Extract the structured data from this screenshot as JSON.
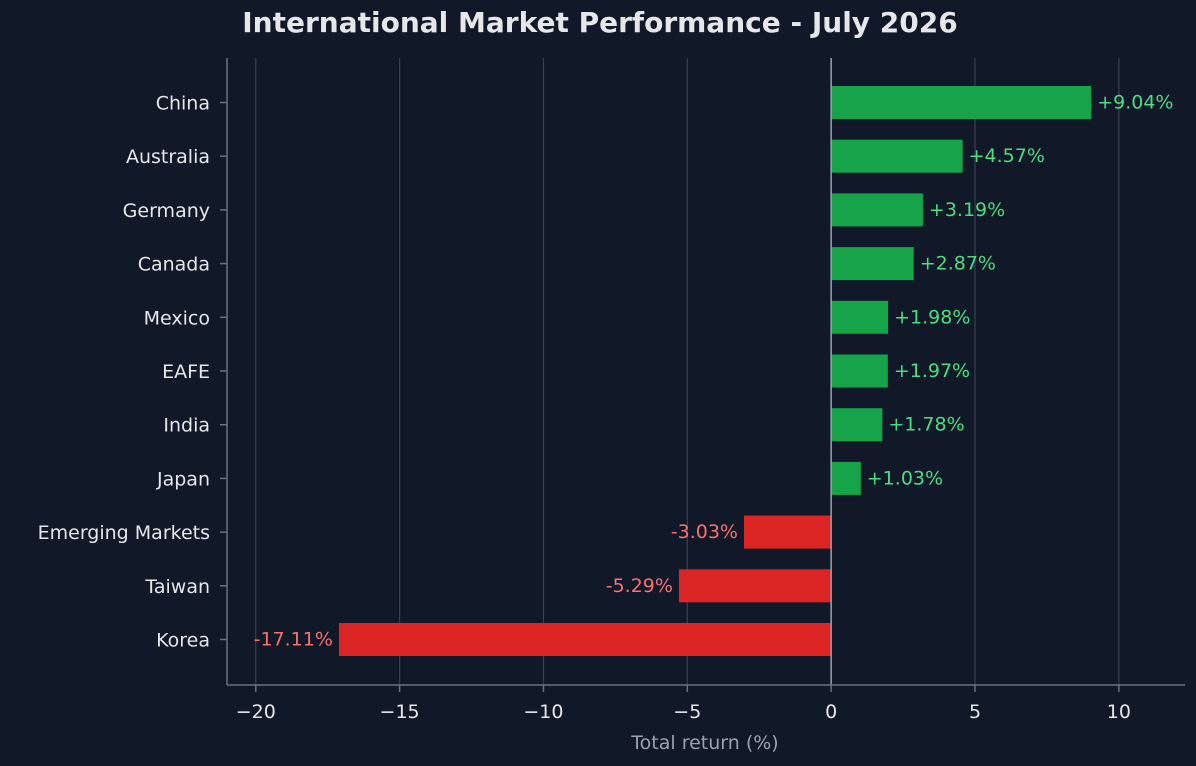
{
  "chart_data": {
    "type": "bar",
    "orientation": "horizontal",
    "title": "International Market Performance - July 2026",
    "xlabel": "Total return (%)",
    "ylabel": "",
    "xlim": [
      -21,
      12.3
    ],
    "xticks": [
      -20,
      -15,
      -10,
      -5,
      0,
      5,
      10
    ],
    "xtick_labels": [
      "−20",
      "−15",
      "−10",
      "−5",
      "0",
      "5",
      "10"
    ],
    "grid": "vertical",
    "categories": [
      "China",
      "Australia",
      "Germany",
      "Canada",
      "Mexico",
      "EAFE",
      "India",
      "Japan",
      "Emerging Markets",
      "Taiwan",
      "Korea"
    ],
    "values": [
      9.04,
      4.57,
      3.19,
      2.87,
      1.98,
      1.97,
      1.78,
      1.03,
      -3.03,
      -5.29,
      -17.11
    ],
    "value_labels": [
      "+9.04%",
      "+4.57%",
      "+3.19%",
      "+2.87%",
      "+1.98%",
      "+1.97%",
      "+1.78%",
      "+1.03%",
      "-3.03%",
      "-5.29%",
      "-17.11%"
    ]
  },
  "colors": {
    "background": "#111827",
    "positive_bar": "#16a34a",
    "negative_bar": "#dc2626",
    "positive_text": "#4ade80",
    "negative_text": "#f87171",
    "title_text": "#e5e7eb",
    "label_text": "#e5e7eb",
    "axis_title_text": "#9ca3af",
    "grid": "#374151",
    "spine": "#6b7280",
    "zero_line": "#9ca3af"
  }
}
